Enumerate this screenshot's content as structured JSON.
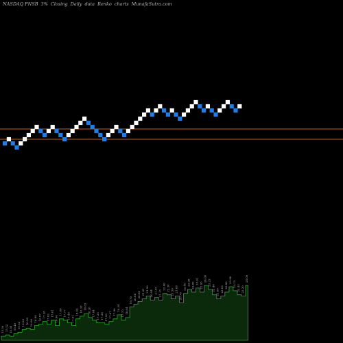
{
  "header": {
    "ticker": "NASDAQ FNSB",
    "percent": "3%",
    "kind": "Closing",
    "freq": "Daily",
    "data_word": "data",
    "renko": "Renko",
    "charts": "charts",
    "site": "MunafaSutra.com"
  },
  "colors": {
    "background": "#000000",
    "up_brick": "#ffffff",
    "down_brick": "#1e7de6",
    "reference_line": "#c86414",
    "volume_fill": "#0b2a0b",
    "volume_line": "#2ea82e"
  },
  "chart_data": {
    "type": "renko",
    "bricks": [
      {
        "dir": "down",
        "level": 0
      },
      {
        "dir": "up",
        "level": 1
      },
      {
        "dir": "down",
        "level": 0
      },
      {
        "dir": "down",
        "level": -1
      },
      {
        "dir": "up",
        "level": 0
      },
      {
        "dir": "up",
        "level": 1
      },
      {
        "dir": "up",
        "level": 2
      },
      {
        "dir": "up",
        "level": 3
      },
      {
        "dir": "up",
        "level": 4
      },
      {
        "dir": "down",
        "level": 3
      },
      {
        "dir": "down",
        "level": 2
      },
      {
        "dir": "up",
        "level": 3
      },
      {
        "dir": "up",
        "level": 4
      },
      {
        "dir": "down",
        "level": 3
      },
      {
        "dir": "down",
        "level": 2
      },
      {
        "dir": "down",
        "level": 1
      },
      {
        "dir": "up",
        "level": 2
      },
      {
        "dir": "up",
        "level": 3
      },
      {
        "dir": "up",
        "level": 4
      },
      {
        "dir": "up",
        "level": 5
      },
      {
        "dir": "up",
        "level": 6
      },
      {
        "dir": "down",
        "level": 5
      },
      {
        "dir": "down",
        "level": 4
      },
      {
        "dir": "down",
        "level": 3
      },
      {
        "dir": "down",
        "level": 2
      },
      {
        "dir": "down",
        "level": 1
      },
      {
        "dir": "up",
        "level": 2
      },
      {
        "dir": "up",
        "level": 3
      },
      {
        "dir": "up",
        "level": 4
      },
      {
        "dir": "down",
        "level": 3
      },
      {
        "dir": "down",
        "level": 2
      },
      {
        "dir": "up",
        "level": 3
      },
      {
        "dir": "up",
        "level": 4
      },
      {
        "dir": "up",
        "level": 5
      },
      {
        "dir": "up",
        "level": 6
      },
      {
        "dir": "up",
        "level": 7
      },
      {
        "dir": "up",
        "level": 8
      },
      {
        "dir": "down",
        "level": 7
      },
      {
        "dir": "up",
        "level": 8
      },
      {
        "dir": "up",
        "level": 9
      },
      {
        "dir": "down",
        "level": 8
      },
      {
        "dir": "down",
        "level": 7
      },
      {
        "dir": "up",
        "level": 8
      },
      {
        "dir": "down",
        "level": 7
      },
      {
        "dir": "down",
        "level": 6
      },
      {
        "dir": "up",
        "level": 7
      },
      {
        "dir": "up",
        "level": 8
      },
      {
        "dir": "up",
        "level": 9
      },
      {
        "dir": "up",
        "level": 10
      },
      {
        "dir": "down",
        "level": 9
      },
      {
        "dir": "down",
        "level": 8
      },
      {
        "dir": "up",
        "level": 9
      },
      {
        "dir": "down",
        "level": 8
      },
      {
        "dir": "down",
        "level": 7
      },
      {
        "dir": "up",
        "level": 8
      },
      {
        "dir": "up",
        "level": 9
      },
      {
        "dir": "up",
        "level": 10
      },
      {
        "dir": "down",
        "level": 9
      },
      {
        "dir": "down",
        "level": 8
      },
      {
        "dir": "up",
        "level": 9
      }
    ],
    "reference_levels": [
      3.5,
      1.0
    ],
    "volume": [
      {
        "label": "15.50",
        "v": 3
      },
      {
        "label": "15.52",
        "v": 4
      },
      {
        "label": "15.50",
        "v": 3
      },
      {
        "label": "15.48",
        "v": 5
      },
      {
        "label": "15.52",
        "v": 6
      },
      {
        "label": "16.06",
        "v": 8
      },
      {
        "label": "16.30",
        "v": 9
      },
      {
        "label": "16.06",
        "v": 8
      },
      {
        "label": "16.88",
        "v": 11
      },
      {
        "label": "16.97",
        "v": 12
      },
      {
        "label": "17.38",
        "v": 14
      },
      {
        "label": "17.02",
        "v": 12
      },
      {
        "label": "17.61",
        "v": 15
      },
      {
        "label": "16.90",
        "v": 11
      },
      {
        "label": "17.80",
        "v": 16
      },
      {
        "label": "17.77",
        "v": 15
      },
      {
        "label": "17.40",
        "v": 13
      },
      {
        "label": "17.01",
        "v": 11
      },
      {
        "label": "18.04",
        "v": 16
      },
      {
        "label": "18.33",
        "v": 18
      },
      {
        "label": "18.65",
        "v": 20
      },
      {
        "label": "18.20",
        "v": 17
      },
      {
        "label": "17.84",
        "v": 15
      },
      {
        "label": "17.35",
        "v": 13
      },
      {
        "label": "17.38",
        "v": 13
      },
      {
        "label": "17.20",
        "v": 12
      },
      {
        "label": "17.67",
        "v": 14
      },
      {
        "label": "17.90",
        "v": 16
      },
      {
        "label": "18.34",
        "v": 19
      },
      {
        "label": "17.70",
        "v": 15
      },
      {
        "label": "18.04",
        "v": 17
      },
      {
        "label": "19.70",
        "v": 25
      },
      {
        "label": "20.04",
        "v": 27
      },
      {
        "label": "20.60",
        "v": 29
      },
      {
        "label": "21.21",
        "v": 31
      },
      {
        "label": "21.93",
        "v": 33
      },
      {
        "label": "20.94",
        "v": 30
      },
      {
        "label": "21.55",
        "v": 32
      },
      {
        "label": "21.13",
        "v": 30
      },
      {
        "label": "22.66",
        "v": 35
      },
      {
        "label": "22.30",
        "v": 34
      },
      {
        "label": "21.50",
        "v": 31
      },
      {
        "label": "21.88",
        "v": 33
      },
      {
        "label": "20.70",
        "v": 28
      },
      {
        "label": "22.40",
        "v": 35
      },
      {
        "label": "23.38",
        "v": 38
      },
      {
        "label": "22.80",
        "v": 36
      },
      {
        "label": "23.61",
        "v": 39
      },
      {
        "label": "22.93",
        "v": 36
      },
      {
        "label": "24.00",
        "v": 41
      },
      {
        "label": "23.25",
        "v": 38
      },
      {
        "label": "22.40",
        "v": 34
      },
      {
        "label": "21.60",
        "v": 31
      },
      {
        "label": "22.05",
        "v": 33
      },
      {
        "label": "22.80",
        "v": 36
      },
      {
        "label": "23.90",
        "v": 40
      },
      {
        "label": "23.15",
        "v": 37
      },
      {
        "label": "22.45",
        "v": 34
      },
      {
        "label": "22.20",
        "v": 33
      },
      {
        "label": "24.00",
        "v": 41
      }
    ]
  }
}
